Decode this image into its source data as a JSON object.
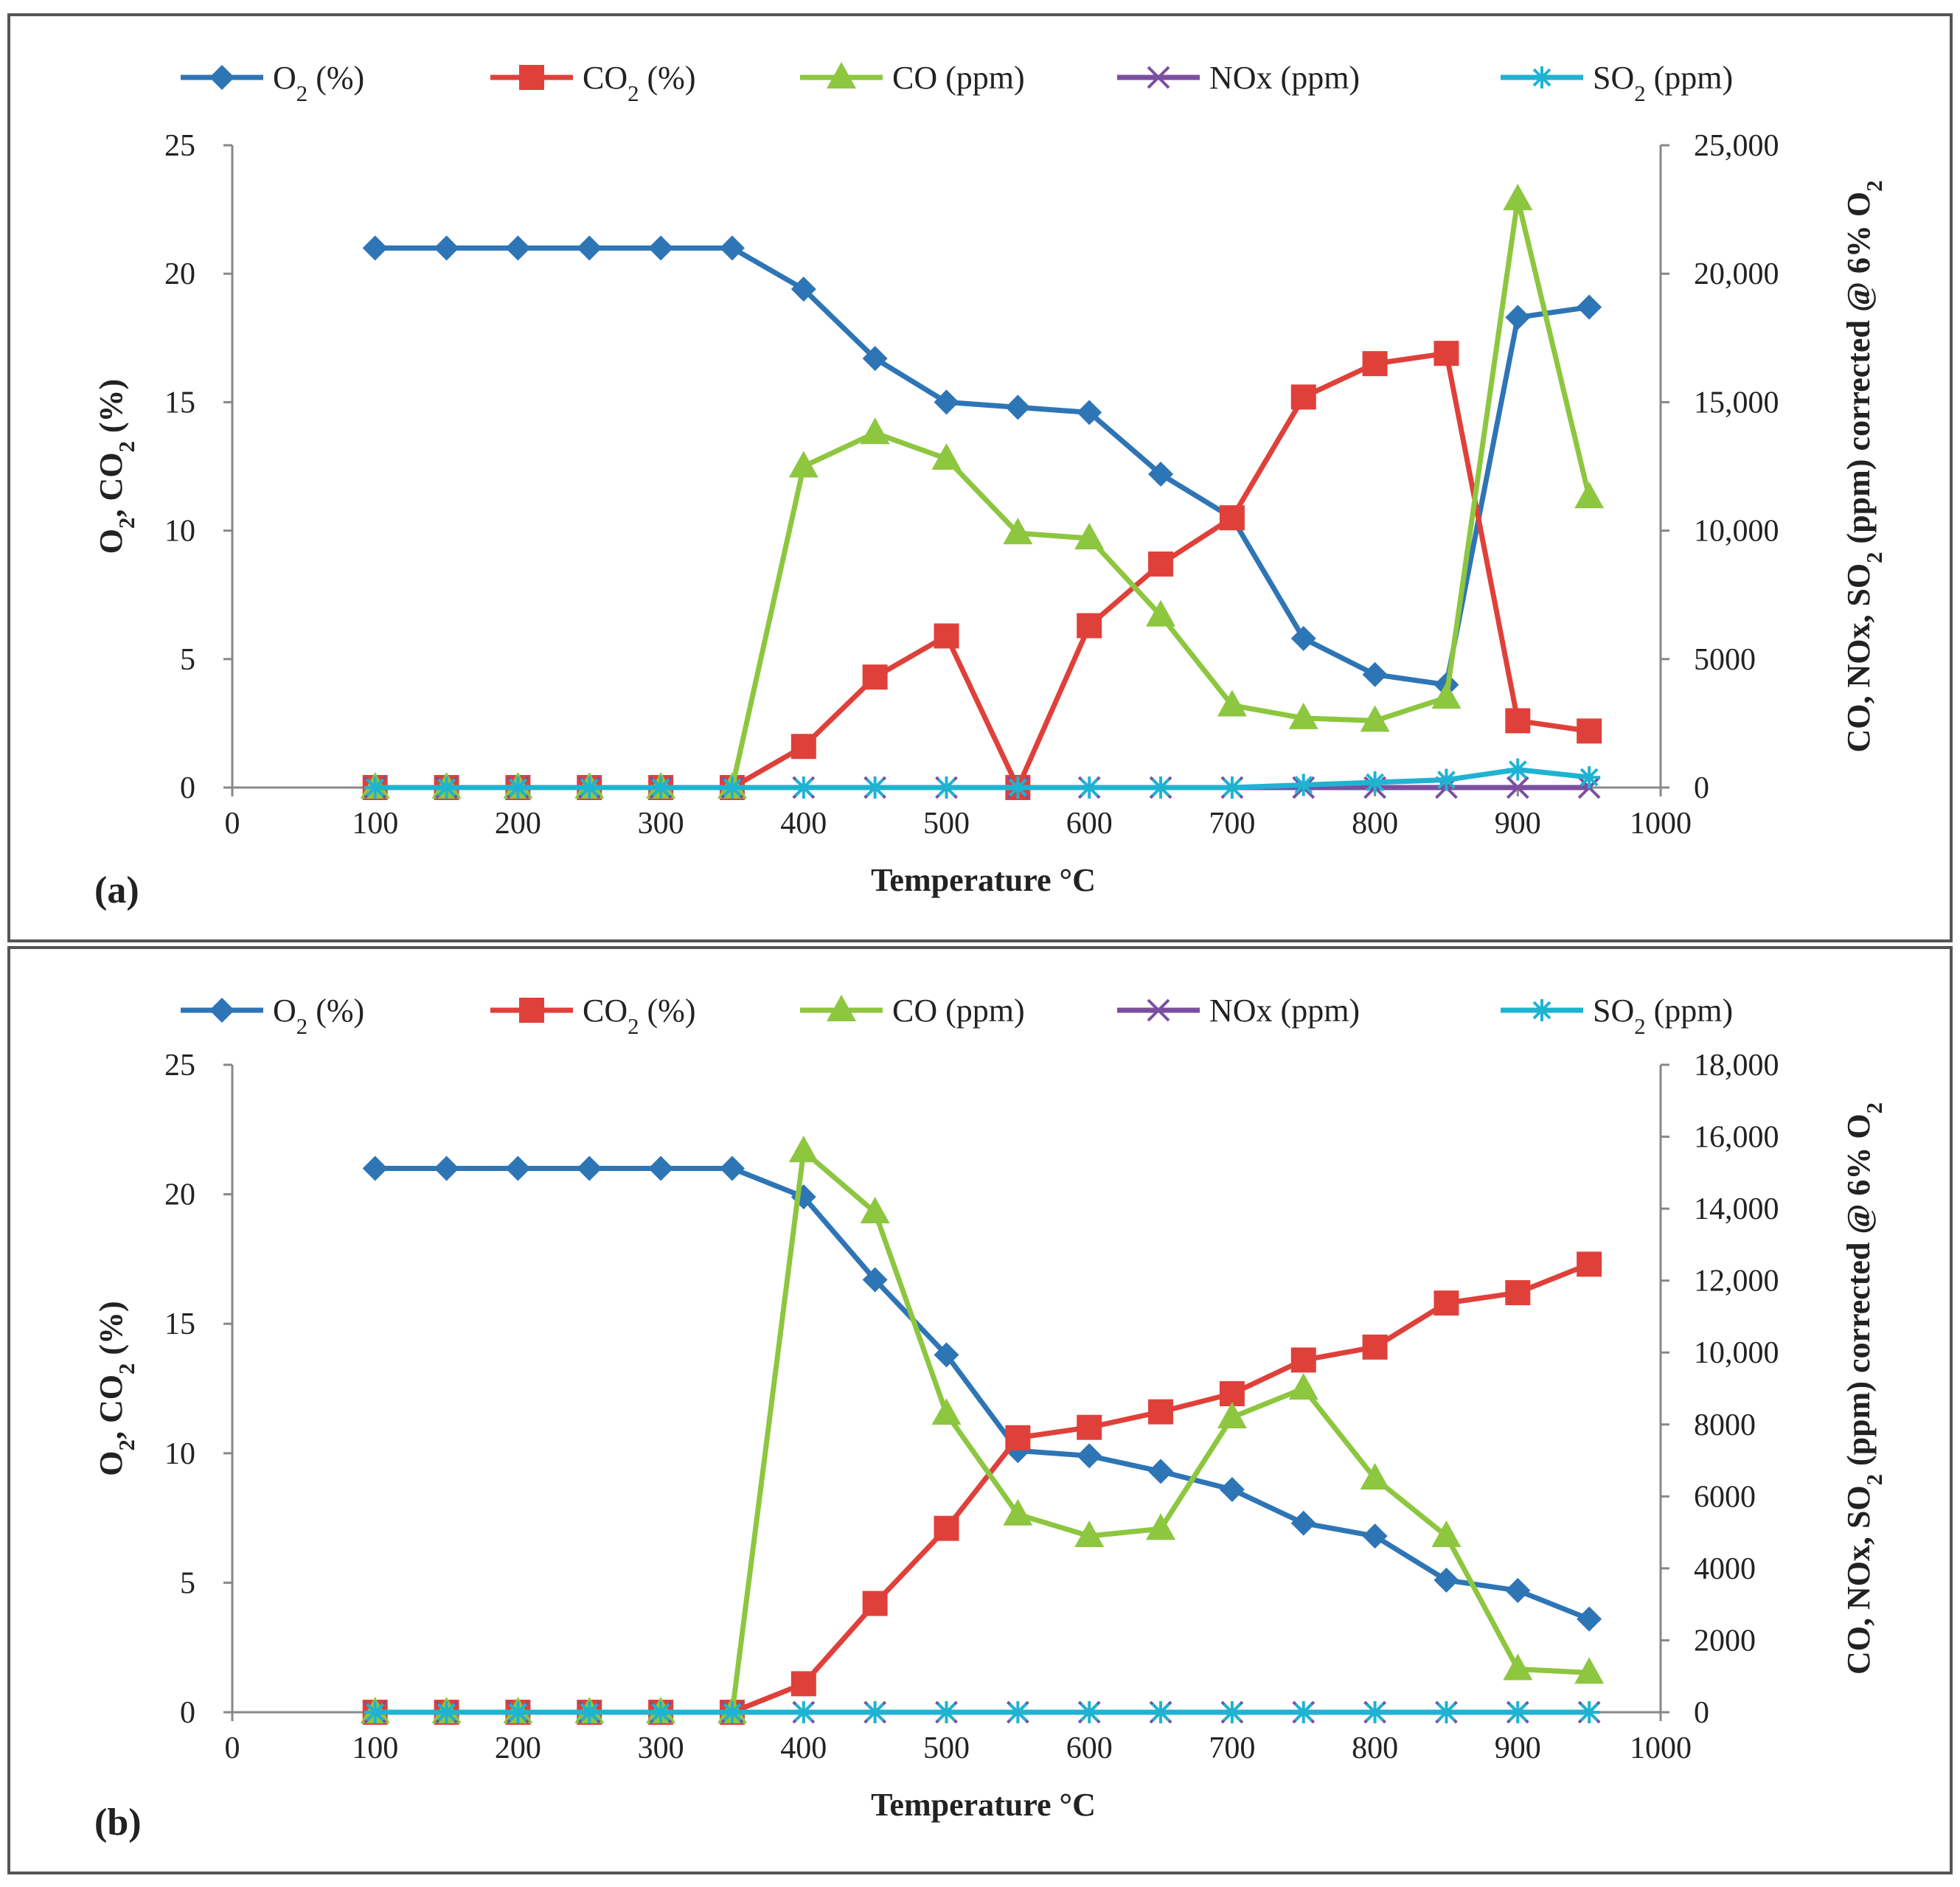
{
  "figure": {
    "colors": {
      "O2": "#2E75B6",
      "CO2": "#E0403A",
      "CO": "#8DC63F",
      "NOx": "#7B4FA0",
      "SO2": "#1FB3D2",
      "border": "#555555",
      "axis": "#888888"
    }
  },
  "legend": [
    {
      "key": "O2",
      "label": "O2 (%)",
      "marker": "diamond"
    },
    {
      "key": "CO2",
      "label": "CO2 (%)",
      "marker": "square"
    },
    {
      "key": "CO",
      "label": "CO (ppm)",
      "marker": "triangle"
    },
    {
      "key": "NOx",
      "label": "NOx (ppm)",
      "marker": "x"
    },
    {
      "key": "SO2",
      "label": "SO2 (ppm)",
      "marker": "star"
    }
  ],
  "chart_data": [
    {
      "panel_label": "(a)",
      "type": "line",
      "x": [
        100,
        150,
        200,
        250,
        300,
        350,
        400,
        450,
        500,
        550,
        600,
        650,
        700,
        750,
        800,
        850,
        900,
        950
      ],
      "xlabel": "Temperature °C",
      "xlim": [
        0,
        1000
      ],
      "x_ticks": [
        0,
        100,
        200,
        300,
        400,
        500,
        600,
        700,
        800,
        900,
        1000
      ],
      "ylabel_left": "O2, CO2 (%)",
      "ylim_left": [
        0,
        25
      ],
      "y_ticks_left": [
        0,
        5,
        10,
        15,
        20,
        25
      ],
      "ylabel_right": "CO, NOx, SO2 (ppm) corrected @ 6% O2",
      "ylim_right": [
        0,
        25000
      ],
      "y_ticks_right": [
        0,
        5000,
        10000,
        15000,
        20000,
        25000
      ],
      "y_tick_labels_right": [
        "0",
        "5000",
        "10,000",
        "15,000",
        "20,000",
        "25,000"
      ],
      "series": [
        {
          "key": "O2",
          "name": "O2 (%)",
          "axis": "left",
          "values": [
            21,
            21,
            21,
            21,
            21,
            21,
            19.4,
            16.7,
            15,
            14.8,
            14.6,
            12.2,
            10.5,
            5.8,
            4.4,
            4,
            18.3,
            18.7
          ]
        },
        {
          "key": "CO2",
          "name": "CO2 (%)",
          "axis": "left",
          "values": [
            0,
            0,
            0,
            0,
            0,
            0,
            1.6,
            4.3,
            5.9,
            0,
            6.3,
            8.7,
            10.5,
            15.2,
            16.5,
            16.9,
            2.6,
            2.2
          ]
        },
        {
          "key": "CO",
          "name": "CO (ppm)",
          "axis": "right",
          "values": [
            0,
            0,
            0,
            0,
            0,
            0,
            12500,
            13800,
            12800,
            9900,
            9700,
            6700,
            3200,
            2700,
            2600,
            3500,
            22900,
            11300
          ]
        },
        {
          "key": "NOx",
          "name": "NOx (ppm)",
          "axis": "right",
          "values": [
            0,
            0,
            0,
            0,
            0,
            0,
            0,
            0,
            0,
            0,
            0,
            0,
            0,
            0,
            0,
            0,
            0,
            0
          ]
        },
        {
          "key": "SO2",
          "name": "SO2 (ppm)",
          "axis": "right",
          "values": [
            0,
            0,
            0,
            0,
            0,
            0,
            0,
            0,
            0,
            0,
            0,
            0,
            0,
            100,
            200,
            300,
            700,
            400
          ]
        }
      ]
    },
    {
      "panel_label": "(b)",
      "type": "line",
      "x": [
        100,
        150,
        200,
        250,
        300,
        350,
        400,
        450,
        500,
        550,
        600,
        650,
        700,
        750,
        800,
        850,
        900,
        950
      ],
      "xlabel": "Temperature °C",
      "xlim": [
        0,
        1000
      ],
      "x_ticks": [
        0,
        100,
        200,
        300,
        400,
        500,
        600,
        700,
        800,
        900,
        1000
      ],
      "ylabel_left": "O2, CO2 (%)",
      "ylim_left": [
        0,
        25
      ],
      "y_ticks_left": [
        0,
        5,
        10,
        15,
        20,
        25
      ],
      "ylabel_right": "CO, NOx, SO2 (ppm) corrected @ 6% O2",
      "ylim_right": [
        0,
        18000
      ],
      "y_ticks_right": [
        0,
        2000,
        4000,
        6000,
        8000,
        10000,
        12000,
        14000,
        16000,
        18000
      ],
      "y_tick_labels_right": [
        "0",
        "2000",
        "4000",
        "6000",
        "8000",
        "10,000",
        "12,000",
        "14,000",
        "16,000",
        "18,000"
      ],
      "series": [
        {
          "key": "O2",
          "name": "O2 (%)",
          "axis": "left",
          "values": [
            21,
            21,
            21,
            21,
            21,
            21,
            19.9,
            16.7,
            13.8,
            10.1,
            9.9,
            9.3,
            8.6,
            7.3,
            6.8,
            5.1,
            4.7,
            3.6
          ]
        },
        {
          "key": "CO2",
          "name": "CO2 (%)",
          "axis": "left",
          "values": [
            0,
            0,
            0,
            0,
            0,
            0,
            1.1,
            4.2,
            7.1,
            10.6,
            11,
            11.6,
            12.3,
            13.6,
            14.1,
            15.8,
            16.2,
            17.3
          ]
        },
        {
          "key": "CO",
          "name": "CO (ppm)",
          "axis": "right",
          "values": [
            0,
            0,
            0,
            0,
            0,
            0,
            15600,
            13900,
            8300,
            5500,
            4900,
            5100,
            8200,
            9000,
            6500,
            4900,
            1200,
            1100
          ]
        },
        {
          "key": "NOx",
          "name": "NOx (ppm)",
          "axis": "right",
          "values": [
            0,
            0,
            0,
            0,
            0,
            0,
            0,
            0,
            0,
            0,
            0,
            0,
            0,
            0,
            0,
            0,
            0,
            0
          ]
        },
        {
          "key": "SO2",
          "name": "SO2 (ppm)",
          "axis": "right",
          "values": [
            0,
            0,
            0,
            0,
            0,
            0,
            0,
            0,
            0,
            0,
            0,
            0,
            0,
            0,
            0,
            0,
            0,
            0
          ]
        }
      ]
    }
  ]
}
